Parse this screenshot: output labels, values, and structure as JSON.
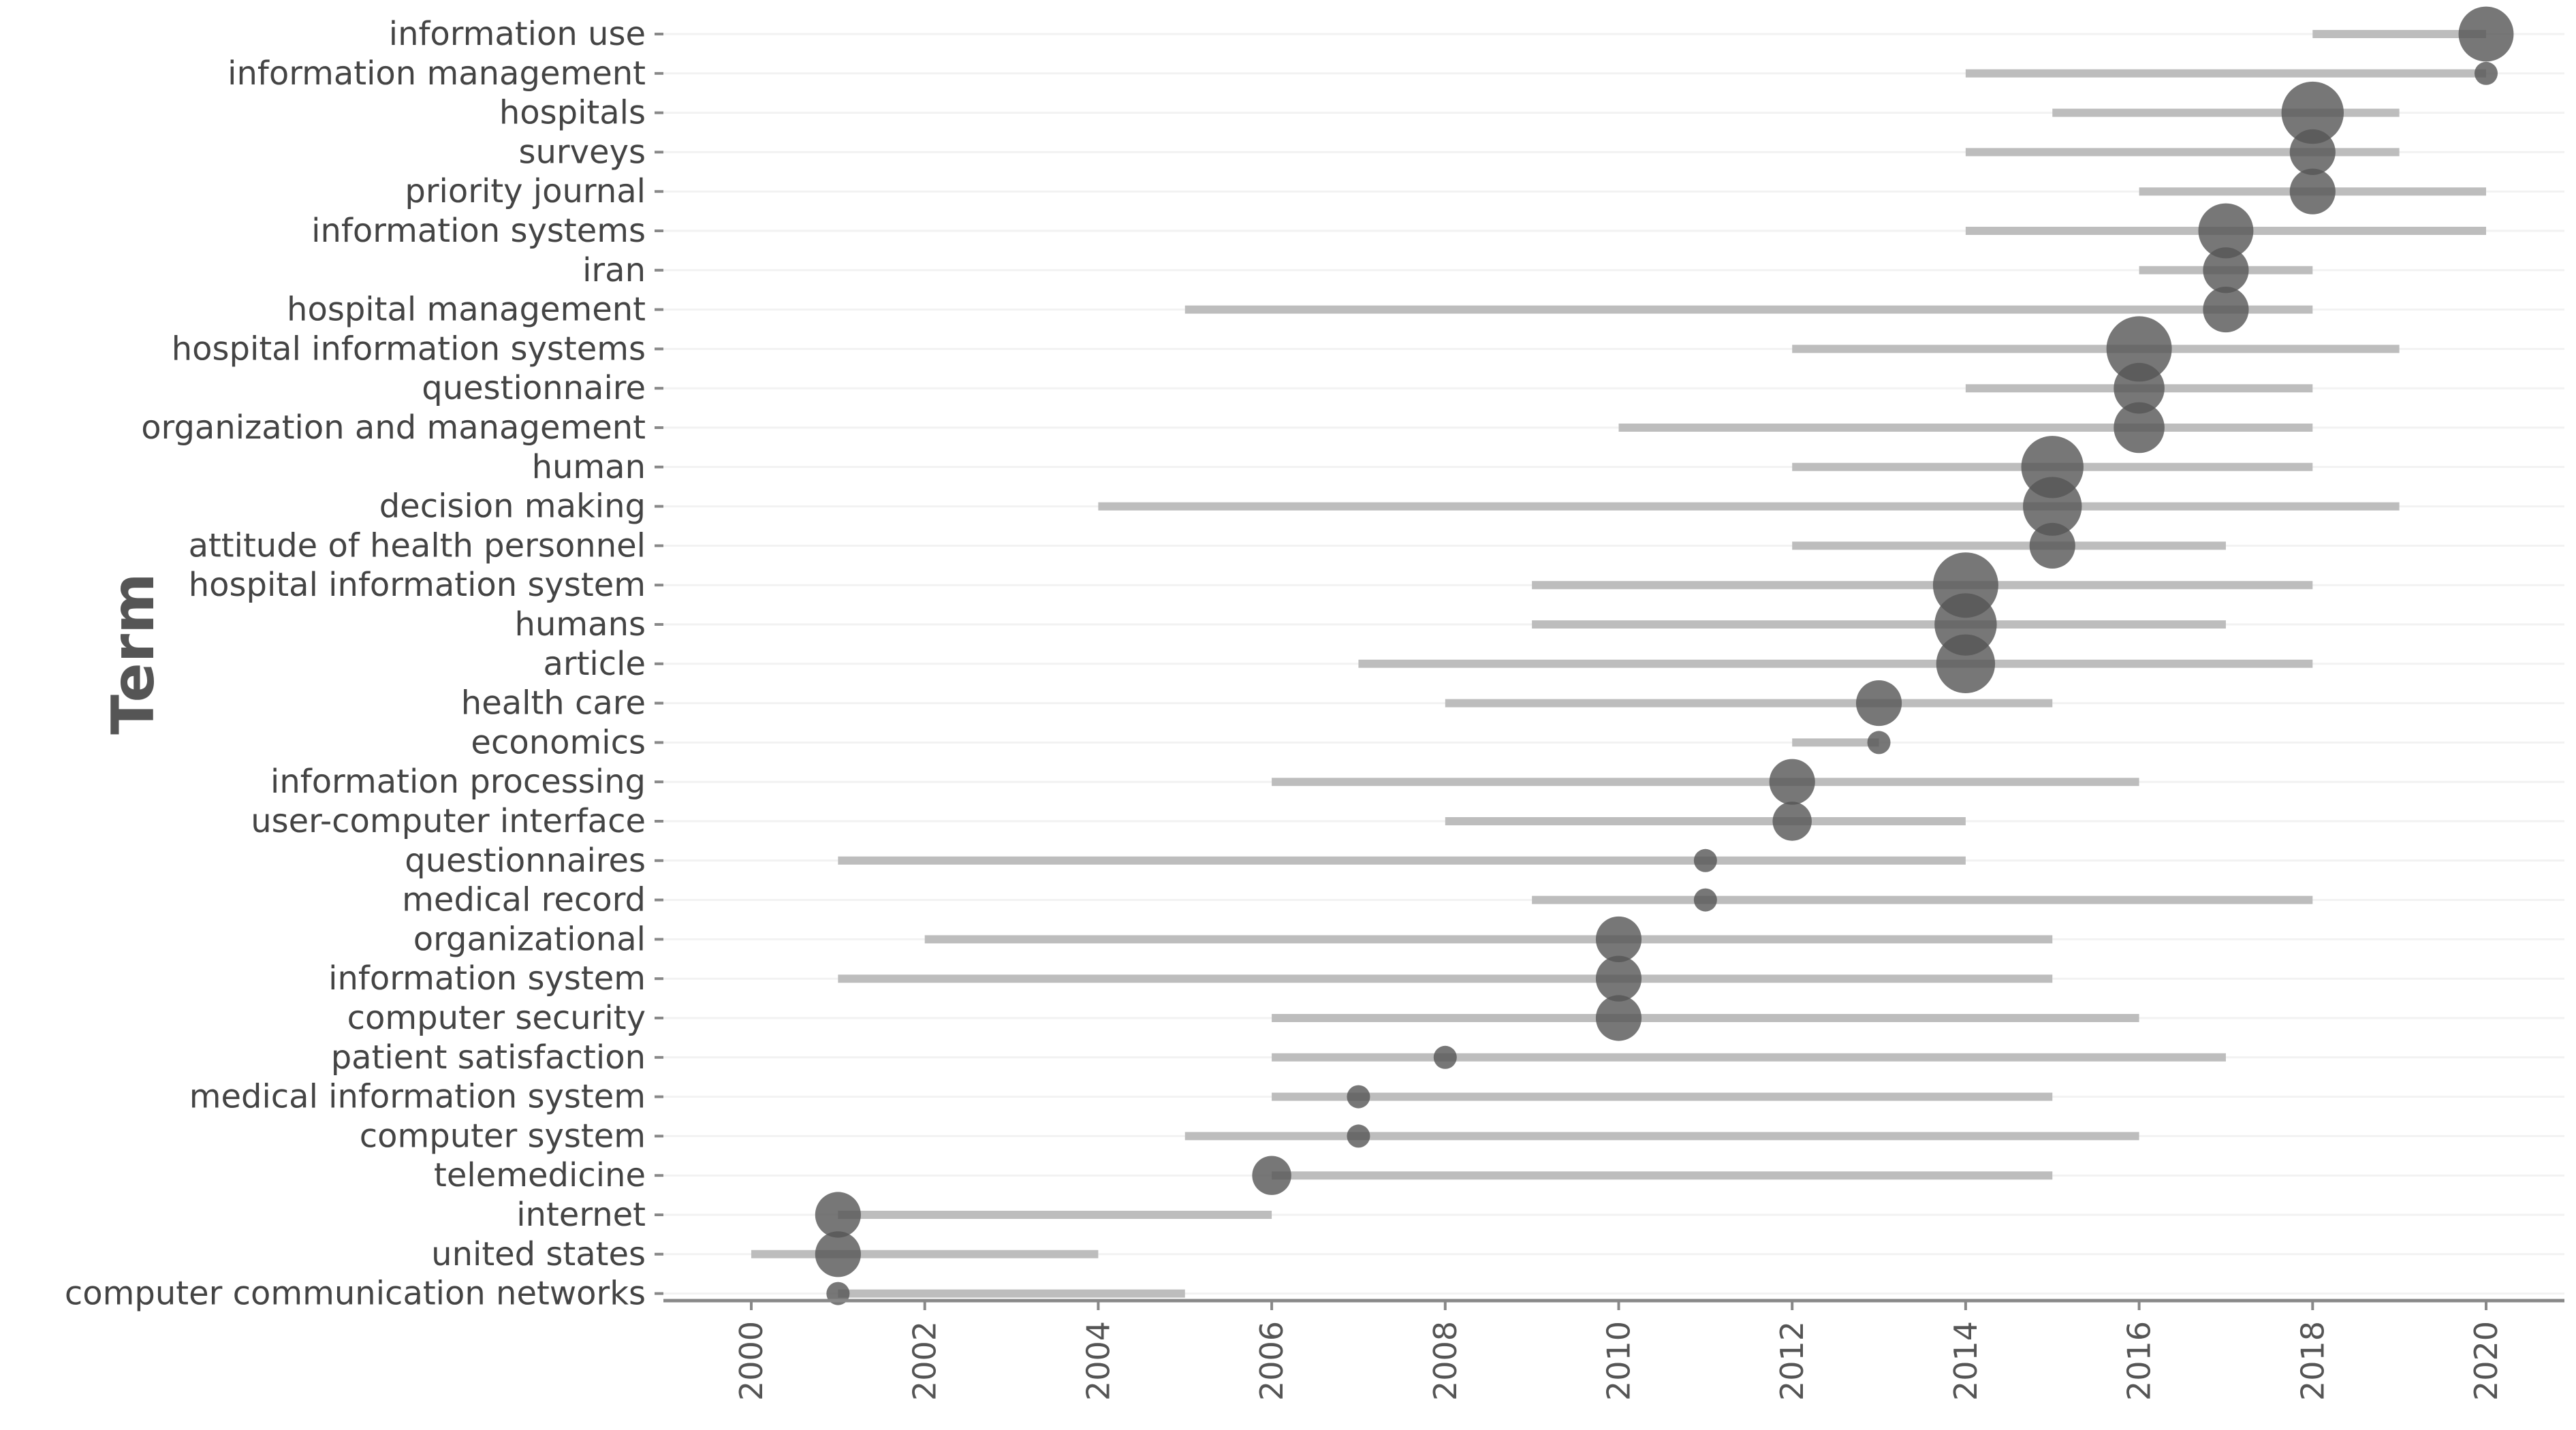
{
  "chart_data": {
    "type": "scatter",
    "title": "",
    "xlabel": "",
    "ylabel": "Term",
    "xlim": [
      2000,
      2020
    ],
    "x_ticks": [
      "2000",
      "2002",
      "2004",
      "2006",
      "2008",
      "2010",
      "2012",
      "2014",
      "2016",
      "2018",
      "2020"
    ],
    "grid": "horizontal",
    "series": [
      {
        "term": "information use",
        "start": 2018,
        "end": 2020,
        "year": 2020,
        "freq": 5
      },
      {
        "term": "information management",
        "start": 2014,
        "end": 2020,
        "year": 2020,
        "freq": 1
      },
      {
        "term": "hospitals",
        "start": 2015,
        "end": 2019,
        "year": 2018,
        "freq": 7
      },
      {
        "term": "surveys",
        "start": 2014,
        "end": 2019,
        "year": 2018,
        "freq": 3
      },
      {
        "term": "priority journal",
        "start": 2016,
        "end": 2020,
        "year": 2018,
        "freq": 3
      },
      {
        "term": "information systems",
        "start": 2014,
        "end": 2020,
        "year": 2017,
        "freq": 5
      },
      {
        "term": "iran",
        "start": 2016,
        "end": 2018,
        "year": 2017,
        "freq": 3
      },
      {
        "term": "hospital management",
        "start": 2005,
        "end": 2018,
        "year": 2017,
        "freq": 3
      },
      {
        "term": "hospital information systems",
        "start": 2012,
        "end": 2019,
        "year": 2016,
        "freq": 8
      },
      {
        "term": "questionnaire",
        "start": 2014,
        "end": 2018,
        "year": 2016,
        "freq": 4
      },
      {
        "term": "organization and management",
        "start": 2010,
        "end": 2018,
        "year": 2016,
        "freq": 4
      },
      {
        "term": "human",
        "start": 2012,
        "end": 2018,
        "year": 2015,
        "freq": 7
      },
      {
        "term": "decision making",
        "start": 2004,
        "end": 2019,
        "year": 2015,
        "freq": 6
      },
      {
        "term": "attitude of health personnel",
        "start": 2012,
        "end": 2017,
        "year": 2015,
        "freq": 3
      },
      {
        "term": "hospital information system",
        "start": 2009,
        "end": 2018,
        "year": 2014,
        "freq": 8
      },
      {
        "term": "humans",
        "start": 2009,
        "end": 2017,
        "year": 2014,
        "freq": 7
      },
      {
        "term": "article",
        "start": 2007,
        "end": 2018,
        "year": 2014,
        "freq": 6
      },
      {
        "term": "health care",
        "start": 2008,
        "end": 2015,
        "year": 2013,
        "freq": 3
      },
      {
        "term": "economics",
        "start": 2012,
        "end": 2013,
        "year": 2013,
        "freq": 1
      },
      {
        "term": "information processing",
        "start": 2006,
        "end": 2016,
        "year": 2012,
        "freq": 3
      },
      {
        "term": "user-computer interface",
        "start": 2008,
        "end": 2014,
        "year": 2012,
        "freq": 2
      },
      {
        "term": "questionnaires",
        "start": 2001,
        "end": 2014,
        "year": 2011,
        "freq": 1
      },
      {
        "term": "medical record",
        "start": 2009,
        "end": 2018,
        "year": 2011,
        "freq": 1
      },
      {
        "term": "organizational",
        "start": 2002,
        "end": 2015,
        "year": 2010,
        "freq": 3
      },
      {
        "term": "information system",
        "start": 2001,
        "end": 2015,
        "year": 2010,
        "freq": 3
      },
      {
        "term": "computer security",
        "start": 2006,
        "end": 2016,
        "year": 2010,
        "freq": 3
      },
      {
        "term": "patient satisfaction",
        "start": 2006,
        "end": 2017,
        "year": 2008,
        "freq": 1
      },
      {
        "term": "medical information system",
        "start": 2006,
        "end": 2015,
        "year": 2007,
        "freq": 1
      },
      {
        "term": "computer system",
        "start": 2005,
        "end": 2016,
        "year": 2007,
        "freq": 1
      },
      {
        "term": "telemedicine",
        "start": 2006,
        "end": 2015,
        "year": 2006,
        "freq": 2
      },
      {
        "term": "internet",
        "start": 2001,
        "end": 2006,
        "year": 2001,
        "freq": 3
      },
      {
        "term": "united states",
        "start": 2000,
        "end": 2004,
        "year": 2001,
        "freq": 3
      },
      {
        "term": "computer communication networks",
        "start": 2001,
        "end": 2005,
        "year": 2001,
        "freq": 1
      }
    ]
  }
}
